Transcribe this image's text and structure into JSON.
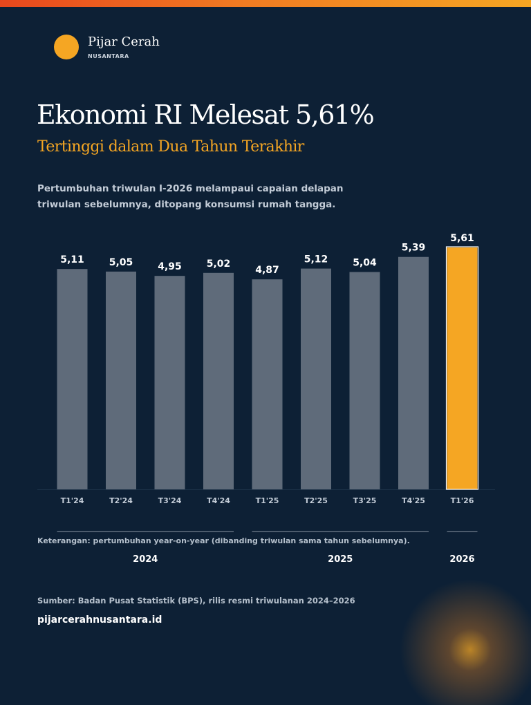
{
  "brand": {
    "name": "Pijar Cerah",
    "sub": "NUSANTARA"
  },
  "title": "Ekonomi RI Melesat 5,61%",
  "subtitle": "Tertinggi dalam Dua Tahun Terakhir",
  "lead": "Pertumbuhan triwulan I-2026 melampaui capaian delapan triwulan sebelumnya, ditopang konsumsi rumah tangga.",
  "note": "Keterangan: pertumbuhan year-on-year (dibanding triwulan sama tahun sebelumnya).",
  "source": "Sumber: Badan Pusat Statistik (BPS), rilis resmi triwulanan 2024–2026",
  "website": "pijarcerahnusantara.id",
  "colors": {
    "bar": "#5f6b7a",
    "highlight": "#f5a623",
    "accent_gradient": [
      "#e8471d",
      "#f5a623"
    ],
    "background": "#0d2035"
  },
  "chart_data": {
    "type": "bar",
    "categories": [
      "T1'24",
      "T2'24",
      "T3'24",
      "T4'24",
      "T1'25",
      "T2'25",
      "T3'25",
      "T4'25",
      "T1'26"
    ],
    "values": [
      5.11,
      5.05,
      4.95,
      5.02,
      4.87,
      5.12,
      5.04,
      5.39,
      5.61
    ],
    "value_labels": [
      "5,11",
      "5,05",
      "4,95",
      "5,02",
      "4,87",
      "5,12",
      "5,04",
      "5,39",
      "5,61"
    ],
    "highlight_index": 8,
    "ylim": [
      0,
      5.61
    ],
    "grid": false,
    "groups": [
      {
        "label": "2024",
        "start": 0,
        "end": 3
      },
      {
        "label": "2025",
        "start": 4,
        "end": 7
      },
      {
        "label": "2026",
        "start": 8,
        "end": 8
      }
    ]
  }
}
